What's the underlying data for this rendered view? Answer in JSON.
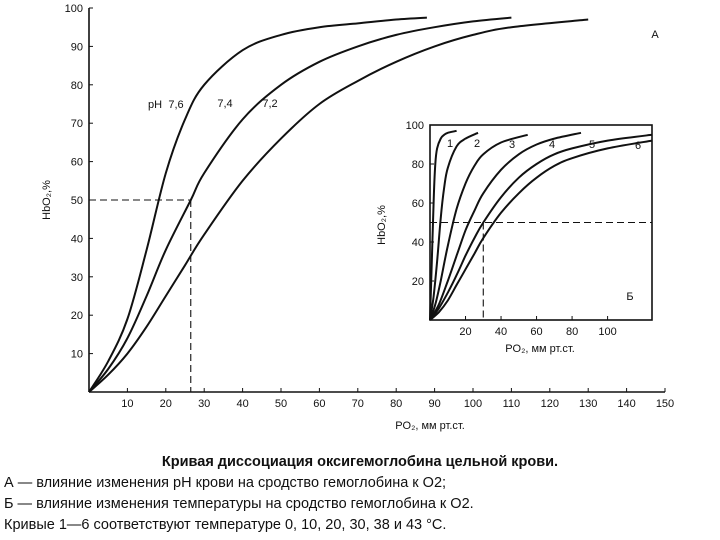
{
  "chart_data": [
    {
      "id": "A",
      "type": "line",
      "panel_label": "А",
      "xlabel": "PO₂, мм рт.ст.",
      "ylabel": "HbO₂,%",
      "xlim": [
        0,
        150
      ],
      "ylim": [
        0,
        100
      ],
      "x_ticks": [
        10,
        20,
        30,
        40,
        50,
        60,
        70,
        80,
        90,
        100,
        110,
        120,
        130,
        140,
        150
      ],
      "y_ticks": [
        10,
        20,
        30,
        40,
        50,
        60,
        70,
        80,
        90,
        100
      ],
      "grid": false,
      "annotation_prefix": "pH",
      "series": [
        {
          "name": "7,6",
          "x": [
            0,
            5,
            10,
            15,
            20,
            25,
            30,
            40,
            50,
            60,
            70,
            80,
            88
          ],
          "y": [
            0,
            8,
            19,
            37,
            57,
            71,
            80,
            89,
            93,
            95,
            96,
            97,
            97.5
          ]
        },
        {
          "name": "7,4",
          "x": [
            0,
            5,
            10,
            15,
            20,
            26.5,
            30,
            40,
            50,
            60,
            70,
            80,
            90,
            100,
            110
          ],
          "y": [
            0,
            6,
            14,
            25,
            37,
            50,
            57,
            71,
            80,
            86,
            90,
            93,
            95,
            96.5,
            97.5
          ]
        },
        {
          "name": "7,2",
          "x": [
            0,
            5,
            10,
            15,
            20,
            25,
            30,
            40,
            50,
            60,
            70,
            80,
            90,
            100,
            110,
            130
          ],
          "y": [
            0,
            4.5,
            10,
            17,
            25,
            33,
            41,
            55,
            66,
            75,
            81,
            86,
            90,
            93,
            95,
            97
          ]
        }
      ],
      "reference_lines": {
        "x": 26.5,
        "y": 50
      }
    },
    {
      "id": "B",
      "type": "line",
      "panel_label": "Б",
      "xlabel": "PO₂, мм рт.ст.",
      "ylabel": "HbO₂,%",
      "xlim": [
        0,
        125
      ],
      "ylim": [
        0,
        100
      ],
      "x_ticks": [
        20,
        40,
        60,
        80,
        100
      ],
      "y_ticks": [
        20,
        40,
        60,
        80,
        100
      ],
      "grid": false,
      "series": [
        {
          "name": "1",
          "x": [
            0,
            1,
            2,
            3,
            4,
            6,
            8,
            10,
            15
          ],
          "y": [
            0,
            30,
            60,
            80,
            88,
            93,
            95,
            96,
            97
          ]
        },
        {
          "name": "2",
          "x": [
            0,
            2,
            4,
            6,
            8,
            10,
            15,
            20,
            27
          ],
          "y": [
            0,
            12,
            30,
            52,
            68,
            78,
            89,
            93,
            96
          ]
        },
        {
          "name": "3",
          "x": [
            0,
            3,
            6,
            10,
            15,
            20,
            25,
            30,
            40,
            55
          ],
          "y": [
            0,
            8,
            20,
            38,
            57,
            70,
            79,
            85,
            91,
            95
          ]
        },
        {
          "name": "4",
          "x": [
            0,
            5,
            10,
            15,
            20,
            25,
            30,
            40,
            50,
            60,
            70,
            85
          ],
          "y": [
            0,
            8,
            20,
            33,
            46,
            56,
            65,
            77,
            85,
            90,
            93,
            96
          ]
        },
        {
          "name": "5",
          "x": [
            0,
            5,
            10,
            15,
            20,
            25,
            30,
            40,
            50,
            60,
            70,
            80,
            100,
            125
          ],
          "y": [
            0,
            6,
            14,
            23,
            33,
            42,
            50,
            63,
            73,
            80,
            85,
            88,
            92,
            95
          ]
        },
        {
          "name": "6",
          "x": [
            0,
            5,
            10,
            15,
            20,
            25,
            30,
            40,
            50,
            60,
            70,
            80,
            100,
            125
          ],
          "y": [
            0,
            4,
            10,
            18,
            26,
            34,
            42,
            55,
            65,
            73,
            79,
            83,
            88,
            92
          ]
        }
      ],
      "reference_lines": {
        "x": 30,
        "y": 50
      }
    }
  ],
  "caption": {
    "title": "Кривая диссоциация оксигемоглобина цельной крови.",
    "lines": [
      "А — влияние изменения рН крови на сродство гемоглобина к O2;",
      " Б — влияние изменения температуры на сродство гемоглобина к O2.",
      "Кривые 1—6 соответствуют температуре 0, 10, 20, 30, 38 и 43 °С."
    ]
  }
}
